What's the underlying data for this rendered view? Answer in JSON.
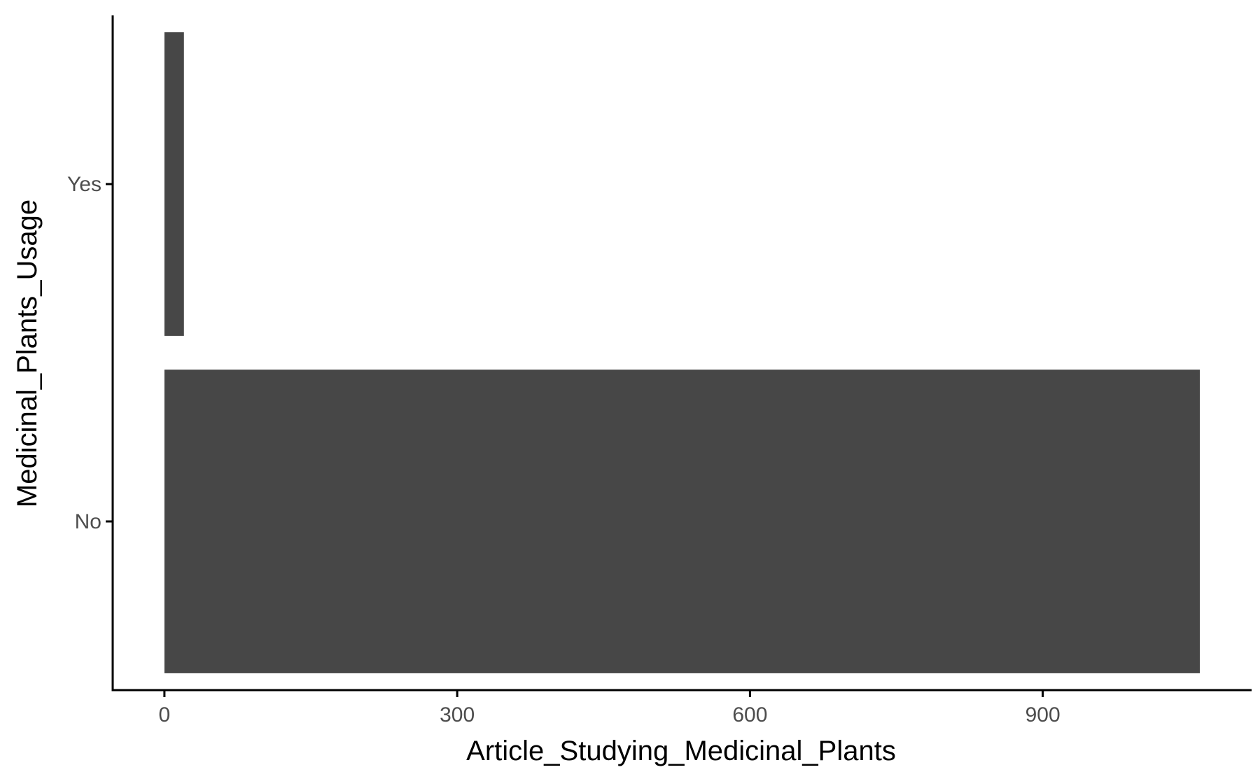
{
  "chart_data": {
    "type": "bar",
    "orientation": "horizontal",
    "categories": [
      "No",
      "Yes"
    ],
    "values": [
      1061,
      20
    ],
    "xlabel": "Article_Studying_Medicinal_Plants",
    "ylabel": "Medicinal_Plants_Usage",
    "xticks": [
      0,
      300,
      600,
      900
    ],
    "xlim": [
      -53,
      1114
    ],
    "grid": false,
    "bar_color": "#474747"
  }
}
